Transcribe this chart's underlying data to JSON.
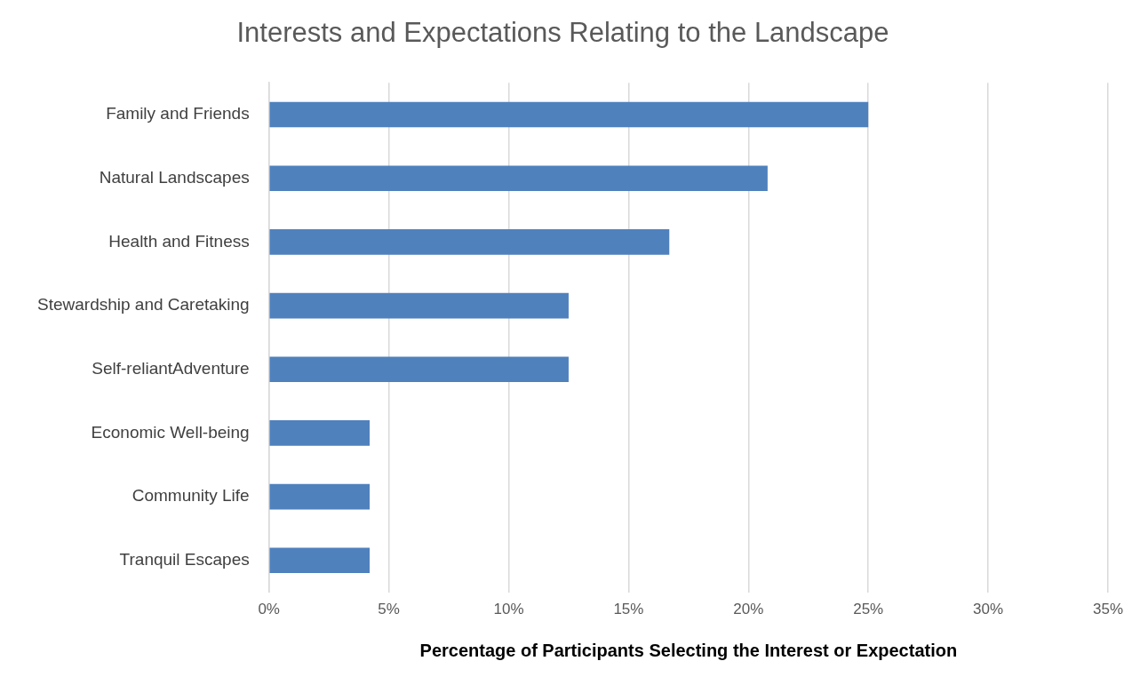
{
  "chart_data": {
    "type": "bar",
    "orientation": "horizontal",
    "title": "Interests and Expectations Relating to the Landscape",
    "xlabel": "Percentage of Participants Selecting the Interest or Expectation",
    "categories": [
      "Family and Friends",
      "Natural Landscapes",
      "Health and Fitness",
      "Stewardship and Caretaking",
      "Self-reliantAdventure",
      "Economic Well-being",
      "Community Life",
      "Tranquil Escapes"
    ],
    "values": [
      25,
      20.8,
      16.7,
      12.5,
      12.5,
      4.2,
      4.2,
      4.2
    ],
    "color": "#4f81bd",
    "xlim": [
      0,
      35
    ],
    "xticks": [
      {
        "value": 0,
        "label": "0%"
      },
      {
        "value": 5,
        "label": "5%"
      },
      {
        "value": 10,
        "label": "10%"
      },
      {
        "value": 15,
        "label": "15%"
      },
      {
        "value": 20,
        "label": "20%"
      },
      {
        "value": 25,
        "label": "25%"
      },
      {
        "value": 30,
        "label": "30%"
      },
      {
        "value": 35,
        "label": "35%"
      }
    ],
    "grid": "x",
    "legend": false
  }
}
